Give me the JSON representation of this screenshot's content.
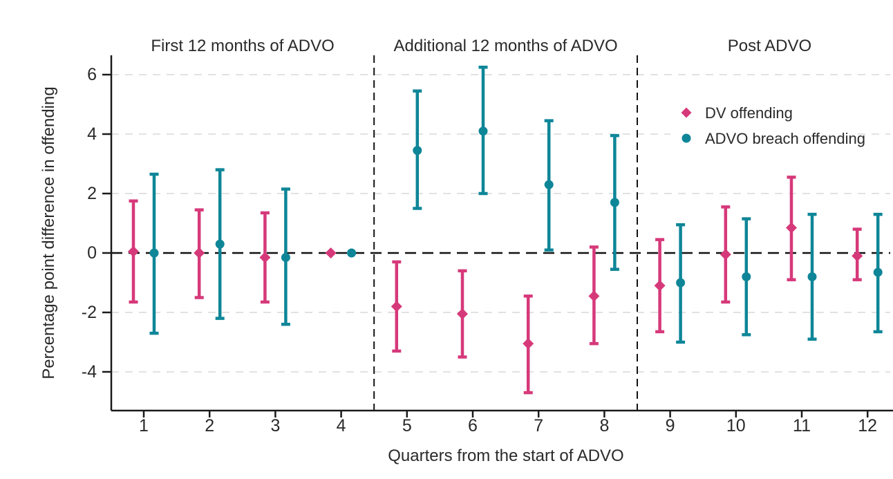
{
  "chart_data": {
    "type": "scatter",
    "subtype": "point-estimates-with-error-bars",
    "xlabel": "Quarters from the start of ADVO",
    "ylabel": "Percentage point difference in offending",
    "xticks": [
      1,
      2,
      3,
      4,
      5,
      6,
      7,
      8,
      9,
      10,
      11,
      12
    ],
    "yticks": [
      6,
      4,
      2,
      0,
      -2,
      -4
    ],
    "ylim": [
      -5.3,
      6.65
    ],
    "reference_line": 0,
    "grid": "horizontal-dashed",
    "legend_position": "top-right",
    "panels": [
      {
        "title": "First 12 months of ADVO",
        "from": 1,
        "to": 4
      },
      {
        "title": "Additional 12 months of ADVO",
        "from": 5,
        "to": 8
      },
      {
        "title": "Post ADVO",
        "from": 9,
        "to": 12
      }
    ],
    "series": [
      {
        "name": "DV offending",
        "marker": "diamond",
        "color": "#d6397a",
        "points": [
          {
            "q": 1,
            "y": 0.05,
            "lo": -1.65,
            "hi": 1.75
          },
          {
            "q": 2,
            "y": 0.0,
            "lo": -1.5,
            "hi": 1.45
          },
          {
            "q": 3,
            "y": -0.15,
            "lo": -1.65,
            "hi": 1.35
          },
          {
            "q": 4,
            "y": 0.0,
            "lo": null,
            "hi": null
          },
          {
            "q": 5,
            "y": -1.8,
            "lo": -3.3,
            "hi": -0.3
          },
          {
            "q": 6,
            "y": -2.05,
            "lo": -3.5,
            "hi": -0.6
          },
          {
            "q": 7,
            "y": -3.05,
            "lo": -4.7,
            "hi": -1.45
          },
          {
            "q": 8,
            "y": -1.45,
            "lo": -3.05,
            "hi": 0.2
          },
          {
            "q": 9,
            "y": -1.1,
            "lo": -2.65,
            "hi": 0.45
          },
          {
            "q": 10,
            "y": -0.05,
            "lo": -1.65,
            "hi": 1.55
          },
          {
            "q": 11,
            "y": 0.85,
            "lo": -0.9,
            "hi": 2.55
          },
          {
            "q": 12,
            "y": -0.1,
            "lo": -0.9,
            "hi": 0.8
          }
        ]
      },
      {
        "name": "ADVO breach offending",
        "marker": "circle",
        "color": "#0e8698",
        "points": [
          {
            "q": 1,
            "y": 0.0,
            "lo": -2.7,
            "hi": 2.65
          },
          {
            "q": 2,
            "y": 0.3,
            "lo": -2.2,
            "hi": 2.8
          },
          {
            "q": 3,
            "y": -0.15,
            "lo": -2.4,
            "hi": 2.15
          },
          {
            "q": 4,
            "y": 0.0,
            "lo": null,
            "hi": null
          },
          {
            "q": 5,
            "y": 3.45,
            "lo": 1.5,
            "hi": 5.45
          },
          {
            "q": 6,
            "y": 4.1,
            "lo": 2.0,
            "hi": 6.25
          },
          {
            "q": 7,
            "y": 2.3,
            "lo": 0.1,
            "hi": 4.45
          },
          {
            "q": 8,
            "y": 1.7,
            "lo": -0.55,
            "hi": 3.95
          },
          {
            "q": 9,
            "y": -1.0,
            "lo": -3.0,
            "hi": 0.95
          },
          {
            "q": 10,
            "y": -0.8,
            "lo": -2.75,
            "hi": 1.15
          },
          {
            "q": 11,
            "y": -0.8,
            "lo": -2.9,
            "hi": 1.3
          },
          {
            "q": 12,
            "y": -0.65,
            "lo": -2.65,
            "hi": 1.3
          }
        ]
      }
    ],
    "style": {
      "background": "#ffffff",
      "text_color": "#2a2a2a",
      "axis_color": "#1a1a1a",
      "grid_color": "#d8d8d8",
      "zero_line_color": "#111111",
      "separator_color": "#111111"
    }
  }
}
